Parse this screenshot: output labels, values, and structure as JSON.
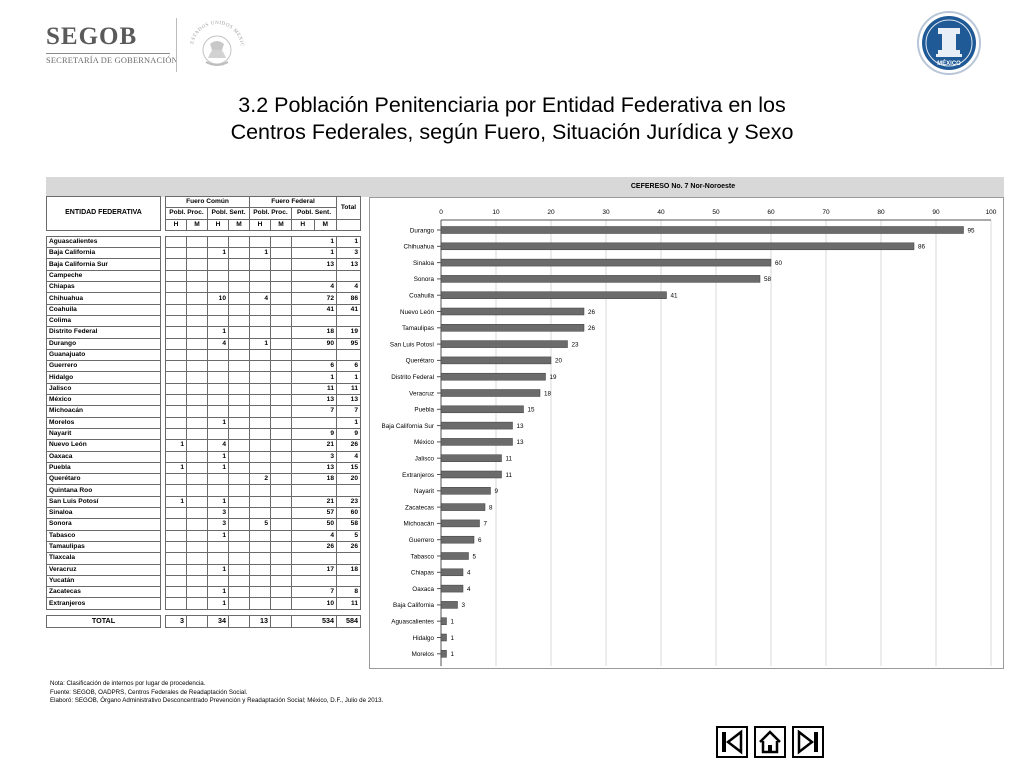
{
  "header": {
    "brand": "SEGOB",
    "brand_sub": "SECRETARÍA DE GOBERNACIÓN",
    "seal_text": "ESTADOS UNIDOS MEXICANOS",
    "emblem_text": "MÉXICO"
  },
  "title": {
    "line1": "3.2 Población Penitenciaria por Entidad Federativa en los",
    "line2": "Centros Federales, según Fuero, Situación Jurídica y Sexo"
  },
  "table": {
    "header_entity": "ENTIDAD FEDERATIVA",
    "fuero_comun": "Fuero Común",
    "fuero_federal": "Fuero Federal",
    "pobl_proc": "Pobl. Proc.",
    "pobl_sent": "Pobl. Sent.",
    "total": "Total",
    "h": "H",
    "m": "M",
    "rows": [
      {
        "name": "Aguascalientes",
        "v": [
          "",
          "",
          "",
          "",
          "",
          "",
          "1",
          "1"
        ]
      },
      {
        "name": "Baja California",
        "v": [
          "",
          "",
          "1",
          "",
          "1",
          "",
          "1",
          "3"
        ]
      },
      {
        "name": "Baja California Sur",
        "v": [
          "",
          "",
          "",
          "",
          "",
          "",
          "13",
          "13"
        ]
      },
      {
        "name": "Campeche",
        "v": [
          "",
          "",
          "",
          "",
          "",
          "",
          "",
          ""
        ]
      },
      {
        "name": "Chiapas",
        "v": [
          "",
          "",
          "",
          "",
          "",
          "",
          "4",
          "4"
        ]
      },
      {
        "name": "Chihuahua",
        "v": [
          "",
          "",
          "10",
          "",
          "4",
          "",
          "72",
          "86"
        ]
      },
      {
        "name": "Coahuila",
        "v": [
          "",
          "",
          "",
          "",
          "",
          "",
          "41",
          "41"
        ]
      },
      {
        "name": "Colima",
        "v": [
          "",
          "",
          "",
          "",
          "",
          "",
          "",
          ""
        ]
      },
      {
        "name": "Distrito Federal",
        "v": [
          "",
          "",
          "1",
          "",
          "",
          "",
          "18",
          "19"
        ]
      },
      {
        "name": "Durango",
        "v": [
          "",
          "",
          "4",
          "",
          "1",
          "",
          "90",
          "95"
        ]
      },
      {
        "name": "Guanajuato",
        "v": [
          "",
          "",
          "",
          "",
          "",
          "",
          "",
          ""
        ]
      },
      {
        "name": "Guerrero",
        "v": [
          "",
          "",
          "",
          "",
          "",
          "",
          "6",
          "6"
        ]
      },
      {
        "name": "Hidalgo",
        "v": [
          "",
          "",
          "",
          "",
          "",
          "",
          "1",
          "1"
        ]
      },
      {
        "name": "Jalisco",
        "v": [
          "",
          "",
          "",
          "",
          "",
          "",
          "11",
          "11"
        ]
      },
      {
        "name": "México",
        "v": [
          "",
          "",
          "",
          "",
          "",
          "",
          "13",
          "13"
        ]
      },
      {
        "name": "Michoacán",
        "v": [
          "",
          "",
          "",
          "",
          "",
          "",
          "7",
          "7"
        ]
      },
      {
        "name": "Morelos",
        "v": [
          "",
          "",
          "1",
          "",
          "",
          "",
          "",
          "1"
        ]
      },
      {
        "name": "Nayarit",
        "v": [
          "",
          "",
          "",
          "",
          "",
          "",
          "9",
          "9"
        ]
      },
      {
        "name": "Nuevo León",
        "v": [
          "1",
          "",
          "4",
          "",
          "",
          "",
          "21",
          "26"
        ]
      },
      {
        "name": "Oaxaca",
        "v": [
          "",
          "",
          "1",
          "",
          "",
          "",
          "3",
          "4"
        ]
      },
      {
        "name": "Puebla",
        "v": [
          "1",
          "",
          "1",
          "",
          "",
          "",
          "13",
          "15"
        ]
      },
      {
        "name": "Querétaro",
        "v": [
          "",
          "",
          "",
          "",
          "2",
          "",
          "18",
          "20"
        ]
      },
      {
        "name": "Quintana Roo",
        "v": [
          "",
          "",
          "",
          "",
          "",
          "",
          "",
          ""
        ]
      },
      {
        "name": "San Luis Potosí",
        "v": [
          "1",
          "",
          "1",
          "",
          "",
          "",
          "21",
          "23"
        ]
      },
      {
        "name": "Sinaloa",
        "v": [
          "",
          "",
          "3",
          "",
          "",
          "",
          "57",
          "60"
        ]
      },
      {
        "name": "Sonora",
        "v": [
          "",
          "",
          "3",
          "",
          "5",
          "",
          "50",
          "58"
        ]
      },
      {
        "name": "Tabasco",
        "v": [
          "",
          "",
          "1",
          "",
          "",
          "",
          "4",
          "5"
        ]
      },
      {
        "name": "Tamaulipas",
        "v": [
          "",
          "",
          "",
          "",
          "",
          "",
          "26",
          "26"
        ]
      },
      {
        "name": "Tlaxcala",
        "v": [
          "",
          "",
          "",
          "",
          "",
          "",
          "",
          ""
        ]
      },
      {
        "name": "Veracruz",
        "v": [
          "",
          "",
          "1",
          "",
          "",
          "",
          "17",
          "18"
        ]
      },
      {
        "name": "Yucatán",
        "v": [
          "",
          "",
          "",
          "",
          "",
          "",
          "",
          ""
        ]
      },
      {
        "name": "Zacatecas",
        "v": [
          "",
          "",
          "1",
          "",
          "",
          "",
          "7",
          "8"
        ]
      },
      {
        "name": "Extranjeros",
        "v": [
          "",
          "",
          "1",
          "",
          "",
          "",
          "10",
          "11"
        ]
      }
    ],
    "total_row": {
      "name": "TOTAL",
      "v": [
        "3",
        "",
        "34",
        "",
        "13",
        "",
        "534",
        "584"
      ]
    }
  },
  "chart_data": {
    "type": "bar",
    "orientation": "horizontal",
    "title": "CEFERESO No. 7 Nor-Noroeste",
    "xlim": [
      0,
      100
    ],
    "xticks": [
      0,
      10,
      20,
      30,
      40,
      50,
      60,
      70,
      80,
      90,
      100
    ],
    "categories": [
      "Durango",
      "Chihuahua",
      "Sinaloa",
      "Sonora",
      "Coahuila",
      "Nuevo León",
      "Tamaulipas",
      "San Luis Potosí",
      "Querétaro",
      "Distrito Federal",
      "Veracruz",
      "Puebla",
      "Baja California Sur",
      "México",
      "Jalisco",
      "Extranjeros",
      "Nayarit",
      "Zacatecas",
      "Michoacán",
      "Guerrero",
      "Tabasco",
      "Chiapas",
      "Oaxaca",
      "Baja California",
      "Aguascalientes",
      "Hidalgo",
      "Morelos"
    ],
    "values": [
      95,
      86,
      60,
      58,
      41,
      26,
      26,
      23,
      20,
      19,
      18,
      15,
      13,
      13,
      11,
      11,
      9,
      8,
      7,
      6,
      5,
      4,
      4,
      3,
      1,
      1,
      1
    ],
    "data_labels": true,
    "grid": true,
    "bar_color": "#6b6b6b"
  },
  "notes": {
    "line1": "Nota: Clasificación de internos por lugar de procedencia.",
    "line2": "Fuente: SEGOB, OADPRS, Centros Federales de Readaptación Social.",
    "line3": "Elaboró: SEGOB, Órgano Administrativo Desconcentrado Prevención y Readaptación Social; México, D.F., Julio de 2013."
  },
  "nav": {
    "first_icon": "first-page-icon",
    "home_icon": "home-icon",
    "last_icon": "last-page-icon"
  }
}
